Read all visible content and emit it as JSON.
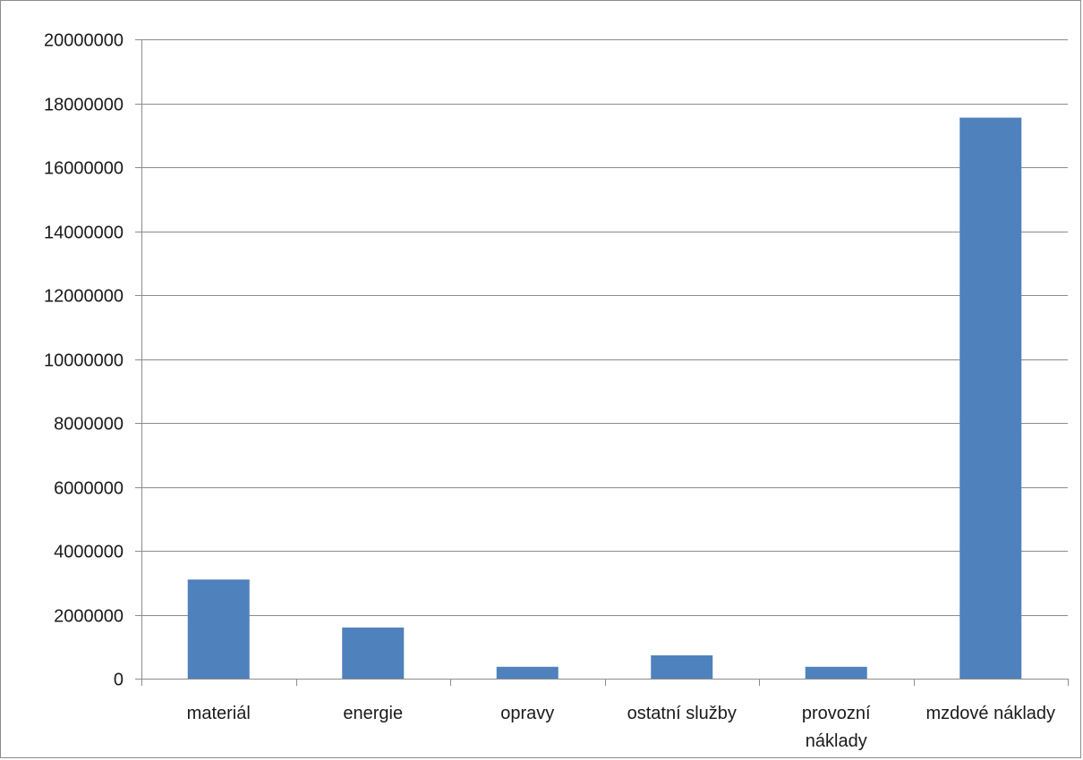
{
  "chart_data": {
    "type": "bar",
    "title": "",
    "xlabel": "",
    "ylabel": "",
    "categories": [
      "materiál",
      "energie",
      "opravy",
      "ostatní služby",
      "provozní náklady",
      "mzdové náklady"
    ],
    "category_lines": [
      [
        "materiál"
      ],
      [
        "energie"
      ],
      [
        "opravy"
      ],
      [
        "ostatní služby"
      ],
      [
        "provozní",
        "náklady"
      ],
      [
        "mzdové náklady"
      ]
    ],
    "values": [
      3100000,
      1600000,
      370000,
      730000,
      370000,
      17550000
    ],
    "ylim": [
      0,
      20000000
    ],
    "yticks": [
      0,
      2000000,
      4000000,
      6000000,
      8000000,
      10000000,
      12000000,
      14000000,
      16000000,
      18000000,
      20000000
    ],
    "ytick_labels": [
      "0",
      "2000000",
      "4000000",
      "6000000",
      "8000000",
      "10000000",
      "12000000",
      "14000000",
      "16000000",
      "18000000",
      "20000000"
    ],
    "grid": true,
    "legend": "none",
    "bar_color": "#4f81bd",
    "grid_color": "#8c8c8c"
  }
}
